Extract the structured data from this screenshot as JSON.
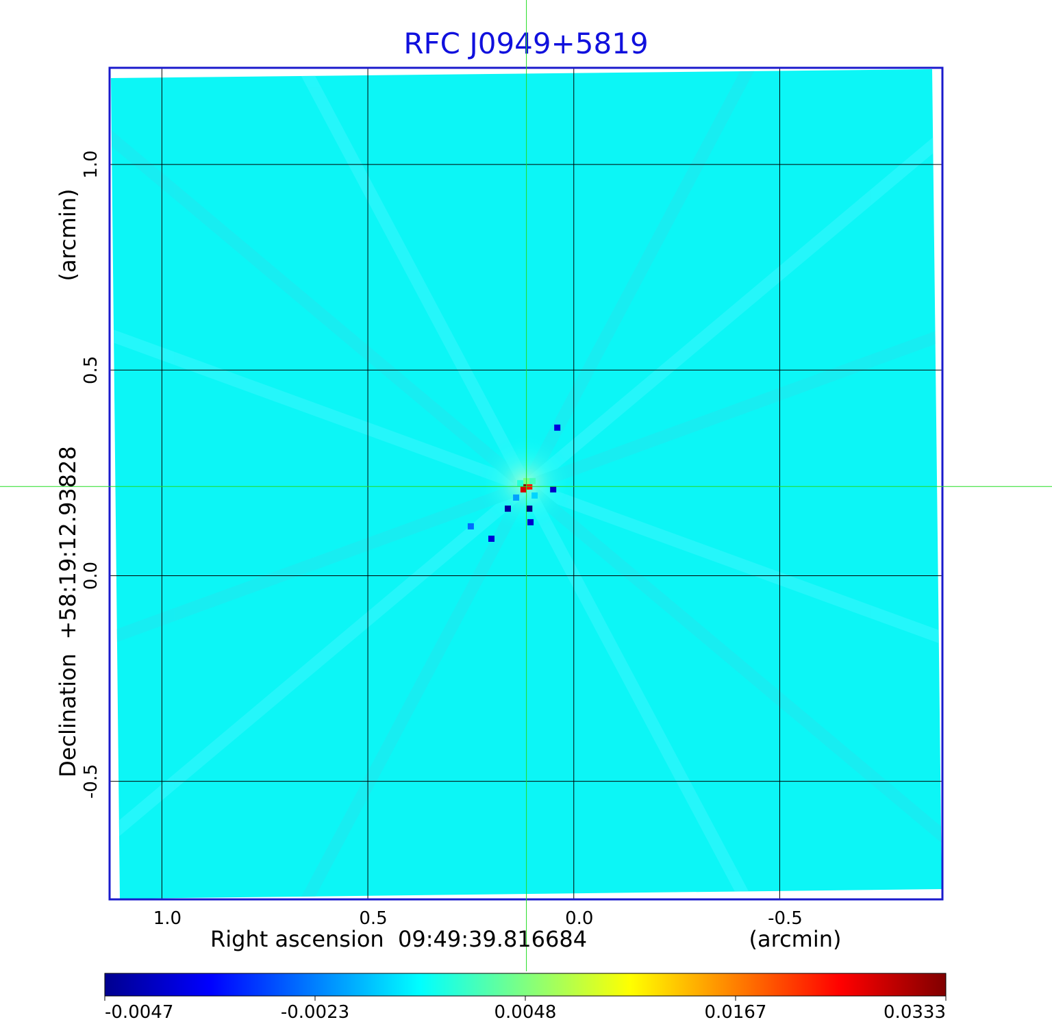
{
  "chart_data": {
    "type": "heatmap",
    "title": "RFC J0949+5819",
    "xlabel": "Right ascension  09:49:39.816684",
    "xunit": "(arcmin)",
    "ylabel": "Declination  +58:19:12.93828",
    "yunit": "(arcmin)",
    "xlim": [
      1.127,
      -0.895
    ],
    "ylim": [
      -0.787,
      1.235
    ],
    "x_ticks": [
      {
        "value": 1.0,
        "label": "1.0"
      },
      {
        "value": 0.5,
        "label": "0.5"
      },
      {
        "value": 0.0,
        "label": "0.0"
      },
      {
        "value": -0.5,
        "label": "-0.5"
      }
    ],
    "y_ticks": [
      {
        "value": 1.0,
        "label": "1.0"
      },
      {
        "value": 0.5,
        "label": "0.5"
      },
      {
        "value": 0.0,
        "label": "0.0"
      },
      {
        "value": -0.5,
        "label": "-0.5"
      }
    ],
    "grid": true,
    "crosshair": {
      "x": 0.115,
      "y": 0.217
    },
    "colormap": "jet",
    "colorbar": {
      "ticks": [
        "-0.0047",
        "-0.0023",
        "0.0048",
        "0.0167",
        "0.0333"
      ],
      "min": -0.0047,
      "max": 0.0333
    },
    "background_value": 0.0,
    "peak": {
      "x": 0.115,
      "y": 0.217,
      "value": 0.0333
    },
    "features": [
      {
        "x": 0.115,
        "y": 0.217,
        "value": 0.033
      },
      {
        "x": 0.108,
        "y": 0.217,
        "value": 0.028
      },
      {
        "x": 0.122,
        "y": 0.21,
        "value": 0.03
      },
      {
        "x": 0.115,
        "y": 0.23,
        "value": 0.014
      },
      {
        "x": 0.1,
        "y": 0.23,
        "value": 0.012
      },
      {
        "x": 0.13,
        "y": 0.225,
        "value": 0.011
      },
      {
        "x": 0.14,
        "y": 0.19,
        "value": 0.006
      },
      {
        "x": 0.095,
        "y": 0.195,
        "value": 0.008
      },
      {
        "x": 0.16,
        "y": 0.163,
        "value": -0.0035
      },
      {
        "x": 0.108,
        "y": 0.163,
        "value": -0.0045
      },
      {
        "x": 0.105,
        "y": 0.13,
        "value": -0.0018
      },
      {
        "x": 0.05,
        "y": 0.21,
        "value": -0.002
      },
      {
        "x": 0.2,
        "y": 0.09,
        "value": -0.0015
      },
      {
        "x": 0.25,
        "y": 0.12,
        "value": 0.004
      },
      {
        "x": 0.04,
        "y": 0.36,
        "value": -0.0012
      }
    ]
  }
}
